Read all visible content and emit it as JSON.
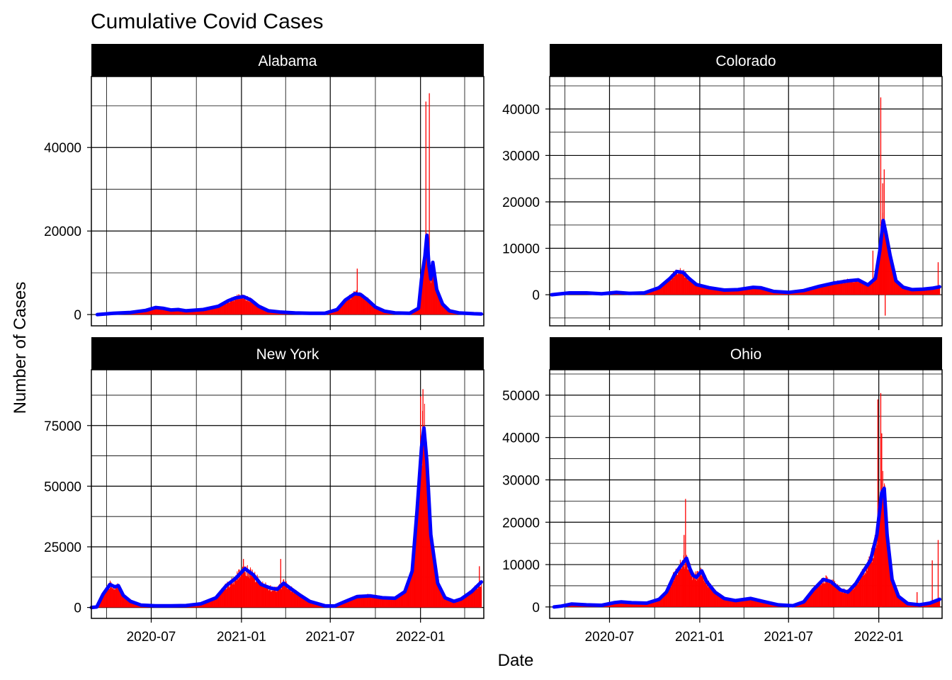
{
  "chart_data": {
    "type": "faceted bar + line",
    "title": "Cumulative Covid Cases",
    "xlabel": "Date",
    "ylabel": "Number of Cases",
    "x_ticks": [
      "2020-07",
      "2021-01",
      "2021-07",
      "2022-01"
    ],
    "x_range": [
      "2020-03-01",
      "2022-05-10"
    ],
    "grid": true,
    "colors": {
      "bars": "#ff0000",
      "line": "#0000ff",
      "strip_bg": "#000000",
      "strip_text": "#ffffff"
    },
    "series_kinds": [
      "daily new cases (bars)",
      "7-day rolling average (line)"
    ],
    "facets": [
      {
        "name": "Alabama",
        "y_range": [
          -2700,
          57000
        ],
        "y_ticks": [
          0,
          20000,
          40000
        ],
        "line_points": [
          [
            "2020-03-13",
            0
          ],
          [
            "2020-04-15",
            300
          ],
          [
            "2020-05-20",
            500
          ],
          [
            "2020-06-20",
            1000
          ],
          [
            "2020-07-10",
            1700
          ],
          [
            "2020-07-25",
            1500
          ],
          [
            "2020-08-10",
            1100
          ],
          [
            "2020-08-25",
            1200
          ],
          [
            "2020-09-10",
            900
          ],
          [
            "2020-10-15",
            1200
          ],
          [
            "2020-11-15",
            2000
          ],
          [
            "2020-12-05",
            3300
          ],
          [
            "2020-12-20",
            4000
          ],
          [
            "2021-01-05",
            4300
          ],
          [
            "2021-01-20",
            3500
          ],
          [
            "2021-02-05",
            2000
          ],
          [
            "2021-02-25",
            900
          ],
          [
            "2021-03-20",
            600
          ],
          [
            "2021-04-20",
            400
          ],
          [
            "2021-05-20",
            300
          ],
          [
            "2021-06-20",
            300
          ],
          [
            "2021-07-15",
            1200
          ],
          [
            "2021-08-01",
            3500
          ],
          [
            "2021-08-20",
            5000
          ],
          [
            "2021-09-01",
            4800
          ],
          [
            "2021-09-15",
            3500
          ],
          [
            "2021-10-01",
            1800
          ],
          [
            "2021-10-20",
            800
          ],
          [
            "2021-11-10",
            400
          ],
          [
            "2021-12-10",
            300
          ],
          [
            "2021-12-28",
            1500
          ],
          [
            "2022-01-03",
            8500
          ],
          [
            "2022-01-10",
            14000
          ],
          [
            "2022-01-14",
            19000
          ],
          [
            "2022-01-18",
            12000
          ],
          [
            "2022-01-22",
            8500
          ],
          [
            "2022-01-26",
            12500
          ],
          [
            "2022-02-03",
            6000
          ],
          [
            "2022-02-15",
            2500
          ],
          [
            "2022-03-01",
            900
          ],
          [
            "2022-03-20",
            400
          ],
          [
            "2022-04-20",
            200
          ],
          [
            "2022-05-05",
            150
          ]
        ],
        "bar_spikes": [
          [
            "2021-08-25",
            11000
          ],
          [
            "2022-01-06",
            13000
          ],
          [
            "2022-01-12",
            51000
          ],
          [
            "2022-01-19",
            53000
          ]
        ]
      },
      {
        "name": "Colorado",
        "y_range": [
          -6700,
          47000
        ],
        "y_ticks": [
          0,
          10000,
          20000,
          30000,
          40000
        ],
        "line_points": [
          [
            "2020-03-05",
            0
          ],
          [
            "2020-04-10",
            400
          ],
          [
            "2020-05-15",
            400
          ],
          [
            "2020-06-15",
            200
          ],
          [
            "2020-07-15",
            500
          ],
          [
            "2020-08-10",
            300
          ],
          [
            "2020-09-10",
            400
          ],
          [
            "2020-10-10",
            1500
          ],
          [
            "2020-11-01",
            3500
          ],
          [
            "2020-11-15",
            5000
          ],
          [
            "2020-11-28",
            4800
          ],
          [
            "2020-12-10",
            3500
          ],
          [
            "2020-12-25",
            2200
          ],
          [
            "2021-01-20",
            1500
          ],
          [
            "2021-02-20",
            1000
          ],
          [
            "2021-03-20",
            1100
          ],
          [
            "2021-04-20",
            1600
          ],
          [
            "2021-05-05",
            1500
          ],
          [
            "2021-06-01",
            700
          ],
          [
            "2021-07-01",
            500
          ],
          [
            "2021-08-01",
            900
          ],
          [
            "2021-09-01",
            1800
          ],
          [
            "2021-10-01",
            2500
          ],
          [
            "2021-11-01",
            3000
          ],
          [
            "2021-11-20",
            3200
          ],
          [
            "2021-12-10",
            2100
          ],
          [
            "2021-12-25",
            3500
          ],
          [
            "2022-01-03",
            9500
          ],
          [
            "2022-01-10",
            16000
          ],
          [
            "2022-01-16",
            13000
          ],
          [
            "2022-01-24",
            8500
          ],
          [
            "2022-02-05",
            3000
          ],
          [
            "2022-02-20",
            1600
          ],
          [
            "2022-03-10",
            1100
          ],
          [
            "2022-04-01",
            1200
          ],
          [
            "2022-04-20",
            1400
          ],
          [
            "2022-05-05",
            1700
          ]
        ],
        "bar_spikes": [
          [
            "2021-12-20",
            9500
          ],
          [
            "2022-01-05",
            42500
          ],
          [
            "2022-01-09",
            24000
          ],
          [
            "2022-01-12",
            27000
          ],
          [
            "2022-01-14",
            -4500
          ],
          [
            "2022-05-02",
            7000
          ]
        ]
      },
      {
        "name": "New York",
        "y_range": [
          -4500,
          98000
        ],
        "y_ticks": [
          0,
          25000,
          50000,
          75000
        ],
        "line_points": [
          [
            "2020-03-01",
            0
          ],
          [
            "2020-03-12",
            200
          ],
          [
            "2020-03-25",
            5500
          ],
          [
            "2020-04-08",
            9500
          ],
          [
            "2020-04-18",
            8500
          ],
          [
            "2020-04-25",
            9000
          ],
          [
            "2020-05-05",
            5000
          ],
          [
            "2020-05-20",
            2500
          ],
          [
            "2020-06-10",
            1000
          ],
          [
            "2020-07-10",
            700
          ],
          [
            "2020-08-10",
            700
          ],
          [
            "2020-09-10",
            800
          ],
          [
            "2020-10-10",
            1500
          ],
          [
            "2020-11-10",
            4000
          ],
          [
            "2020-12-01",
            9000
          ],
          [
            "2020-12-20",
            12000
          ],
          [
            "2021-01-08",
            16000
          ],
          [
            "2021-01-25",
            13500
          ],
          [
            "2021-02-10",
            9500
          ],
          [
            "2021-03-01",
            8000
          ],
          [
            "2021-03-15",
            7500
          ],
          [
            "2021-03-28",
            10000
          ],
          [
            "2021-04-10",
            8000
          ],
          [
            "2021-05-01",
            5000
          ],
          [
            "2021-05-20",
            2500
          ],
          [
            "2021-06-20",
            700
          ],
          [
            "2021-07-10",
            600
          ],
          [
            "2021-08-01",
            2500
          ],
          [
            "2021-08-25",
            4500
          ],
          [
            "2021-09-20",
            4800
          ],
          [
            "2021-10-15",
            4000
          ],
          [
            "2021-11-10",
            3800
          ],
          [
            "2021-11-30",
            6500
          ],
          [
            "2021-12-15",
            15000
          ],
          [
            "2021-12-25",
            40000
          ],
          [
            "2022-01-03",
            66000
          ],
          [
            "2022-01-08",
            74000
          ],
          [
            "2022-01-14",
            60000
          ],
          [
            "2022-01-22",
            30000
          ],
          [
            "2022-02-05",
            10000
          ],
          [
            "2022-02-20",
            4000
          ],
          [
            "2022-03-10",
            2500
          ],
          [
            "2022-03-25",
            3500
          ],
          [
            "2022-04-15",
            6500
          ],
          [
            "2022-05-05",
            10500
          ]
        ],
        "bar_spikes": [
          [
            "2021-01-05",
            20000
          ],
          [
            "2021-03-22",
            20000
          ],
          [
            "2022-01-01",
            87000
          ],
          [
            "2022-01-06",
            90000
          ],
          [
            "2022-05-01",
            17000
          ]
        ]
      },
      {
        "name": "Ohio",
        "y_range": [
          -2700,
          56000
        ],
        "y_ticks": [
          0,
          10000,
          20000,
          30000,
          40000,
          50000
        ],
        "line_points": [
          [
            "2020-03-10",
            0
          ],
          [
            "2020-03-25",
            200
          ],
          [
            "2020-04-15",
            700
          ],
          [
            "2020-05-15",
            500
          ],
          [
            "2020-06-15",
            400
          ],
          [
            "2020-07-10",
            1000
          ],
          [
            "2020-07-25",
            1200
          ],
          [
            "2020-08-15",
            1000
          ],
          [
            "2020-09-15",
            900
          ],
          [
            "2020-10-10",
            1800
          ],
          [
            "2020-10-25",
            3500
          ],
          [
            "2020-11-10",
            7500
          ],
          [
            "2020-11-22",
            9500
          ],
          [
            "2020-12-05",
            11500
          ],
          [
            "2020-12-12",
            9000
          ],
          [
            "2020-12-18",
            7500
          ],
          [
            "2020-12-25",
            7000
          ],
          [
            "2021-01-05",
            8500
          ],
          [
            "2021-01-15",
            6000
          ],
          [
            "2021-02-01",
            3500
          ],
          [
            "2021-02-20",
            2000
          ],
          [
            "2021-03-15",
            1500
          ],
          [
            "2021-04-15",
            2000
          ],
          [
            "2021-05-10",
            1300
          ],
          [
            "2021-06-10",
            500
          ],
          [
            "2021-07-10",
            300
          ],
          [
            "2021-08-01",
            1200
          ],
          [
            "2021-08-20",
            4000
          ],
          [
            "2021-09-10",
            6500
          ],
          [
            "2021-09-25",
            6000
          ],
          [
            "2021-10-15",
            4000
          ],
          [
            "2021-10-30",
            3500
          ],
          [
            "2021-11-15",
            5500
          ],
          [
            "2021-12-01",
            8500
          ],
          [
            "2021-12-15",
            11000
          ],
          [
            "2021-12-28",
            17000
          ],
          [
            "2022-01-07",
            27000
          ],
          [
            "2022-01-12",
            28000
          ],
          [
            "2022-01-18",
            17000
          ],
          [
            "2022-01-28",
            6500
          ],
          [
            "2022-02-10",
            2500
          ],
          [
            "2022-03-01",
            800
          ],
          [
            "2022-03-25",
            500
          ],
          [
            "2022-04-15",
            900
          ],
          [
            "2022-05-05",
            1800
          ]
        ],
        "bar_spikes": [
          [
            "2020-11-30",
            17000
          ],
          [
            "2020-12-03",
            25500
          ],
          [
            "2021-12-30",
            49000
          ],
          [
            "2022-01-05",
            50500
          ],
          [
            "2022-01-07",
            41000
          ],
          [
            "2022-03-20",
            3500
          ],
          [
            "2022-04-20",
            11000
          ],
          [
            "2022-05-02",
            15800
          ]
        ]
      }
    ]
  }
}
